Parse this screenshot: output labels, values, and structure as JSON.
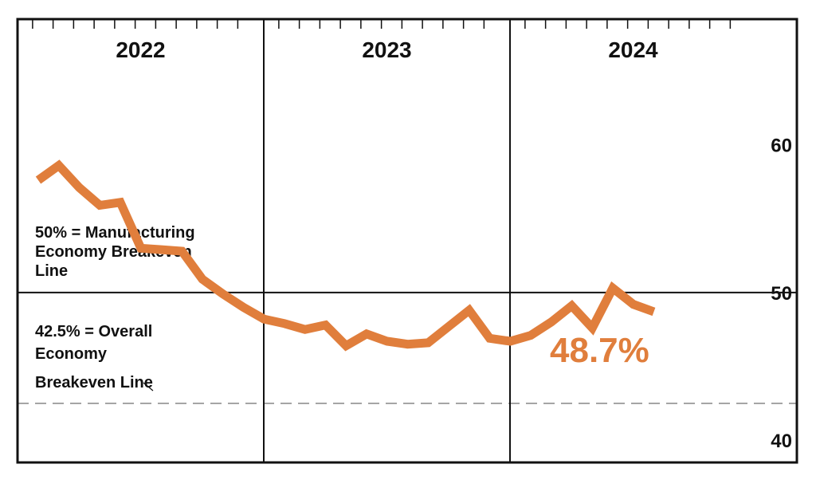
{
  "chart_data": {
    "type": "line",
    "title": "",
    "xlabel": "",
    "ylabel": "",
    "year_labels": [
      "2022",
      "2023",
      "2024"
    ],
    "yticks": [
      40,
      50,
      60
    ],
    "ylim": [
      38.5,
      68.5
    ],
    "months_per_year": 12,
    "reference_lines": [
      {
        "value": 50,
        "style": "solid",
        "label": [
          "50% = Manufacturing",
          "Economy Breakeven",
          "Line"
        ]
      },
      {
        "value": 42.5,
        "style": "dashed",
        "label": [
          "42.5% = Overall",
          "Economy",
          "Breakeven Line"
        ]
      }
    ],
    "series": [
      {
        "color": "#e07e3c",
        "values": [
          57.6,
          58.6,
          57.1,
          55.9,
          56.1,
          53.0,
          52.9,
          52.8,
          50.9,
          49.9,
          49.0,
          48.2,
          47.9,
          47.5,
          47.8,
          46.4,
          47.2,
          46.7,
          46.5,
          46.6,
          47.7,
          48.8,
          46.9,
          46.7,
          47.1,
          48.0,
          49.1,
          47.6,
          50.3,
          49.2,
          48.7
        ]
      }
    ],
    "callout": {
      "text": "48.7%",
      "color": "#e07e3c"
    },
    "grid": false
  }
}
